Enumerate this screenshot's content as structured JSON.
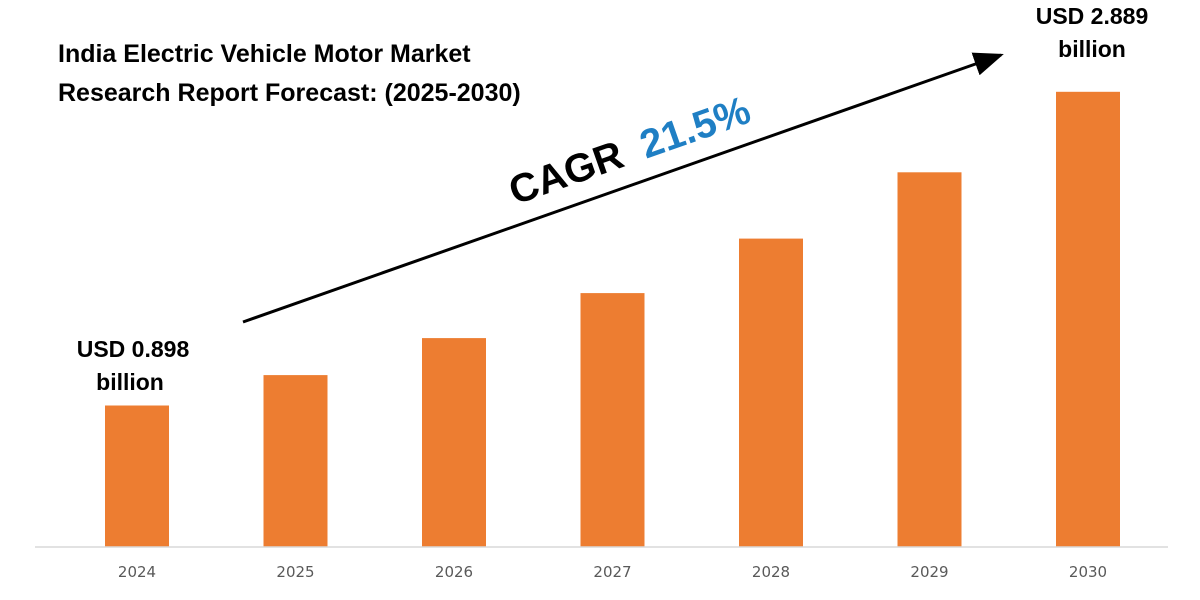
{
  "chart_data": {
    "type": "bar",
    "title_lines": [
      "India Electric Vehicle Motor Market",
      "Research Report Forecast: (2025-2030)"
    ],
    "categories": [
      "2024",
      "2025",
      "2026",
      "2027",
      "2028",
      "2029",
      "2030"
    ],
    "values": [
      0.898,
      1.091,
      1.326,
      1.611,
      1.957,
      2.378,
      2.889
    ],
    "unit": "USD billion",
    "xlabel": "",
    "ylabel": "",
    "ylim": [
      0,
      3.3
    ],
    "grid": false,
    "legend": "none",
    "bar_color": "#ed7d31",
    "annotations": {
      "start": {
        "line1": "USD 0.898",
        "line2": "billion"
      },
      "end": {
        "line1": "USD 2.889",
        "line2": "billion"
      },
      "cagr_label": "CAGR",
      "cagr_value": "21.5%",
      "cagr_value_color": "#1f7fc4",
      "arrow_color": "#000000"
    }
  }
}
